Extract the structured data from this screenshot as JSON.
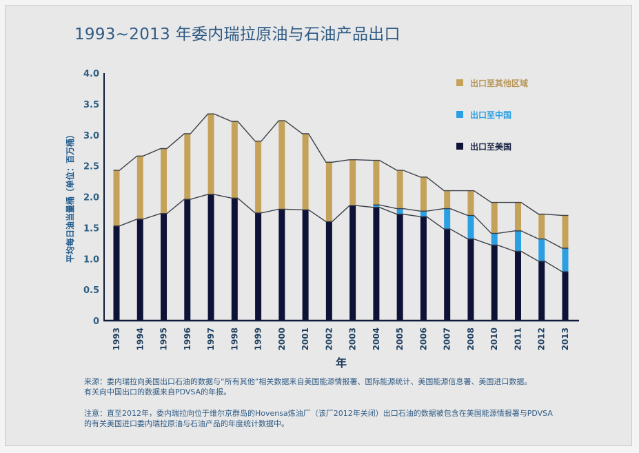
{
  "chart_data": {
    "type": "bar",
    "stacked": true,
    "title": "1993~2013 年委内瑞拉原油与石油产品出口",
    "xlabel": "年",
    "ylabel": "平均每日油当量桶（单位：百万桶）",
    "ylim": [
      0,
      4.0
    ],
    "yticks": [
      "0",
      "0.5",
      "1.0",
      "1.5",
      "2.0",
      "2.5",
      "3.0",
      "3.5",
      "4.0"
    ],
    "ytick_values": [
      0,
      0.5,
      1.0,
      1.5,
      2.0,
      2.5,
      3.0,
      3.5,
      4.0
    ],
    "grid": false,
    "legend_position": "top-right",
    "categories": [
      "1993",
      "1994",
      "1995",
      "1996",
      "1997",
      "1998",
      "1999",
      "2000",
      "2001",
      "2002",
      "2003",
      "2004",
      "2005",
      "2006",
      "2007",
      "2008",
      "2010",
      "2011",
      "2012",
      "2013"
    ],
    "series": [
      {
        "name": "出口至美国",
        "color": "#0d1236",
        "values": [
          1.53,
          1.64,
          1.73,
          1.96,
          2.04,
          1.98,
          1.74,
          1.8,
          1.79,
          1.6,
          1.86,
          1.83,
          1.72,
          1.68,
          1.48,
          1.32,
          1.22,
          1.12,
          0.96,
          0.79
        ]
      },
      {
        "name": "出口至中国",
        "color": "#2a9fe2",
        "values": [
          0,
          0,
          0,
          0,
          0,
          0,
          0,
          0,
          0,
          0,
          0,
          0.04,
          0.09,
          0.09,
          0.33,
          0.38,
          0.19,
          0.33,
          0.36,
          0.38
        ]
      },
      {
        "name": "出口至其他区域",
        "color": "#c4a25a",
        "values": [
          0.9,
          1.02,
          1.05,
          1.06,
          1.3,
          1.24,
          1.16,
          1.43,
          1.23,
          0.96,
          0.74,
          0.72,
          0.62,
          0.55,
          0.29,
          0.4,
          0.5,
          0.46,
          0.4,
          0.53
        ]
      }
    ],
    "totals": [
      2.43,
      2.66,
      2.78,
      3.02,
      3.34,
      3.22,
      2.9,
      3.23,
      3.02,
      2.56,
      2.6,
      2.59,
      2.43,
      2.32,
      2.1,
      2.1,
      1.91,
      1.91,
      1.72,
      1.7
    ],
    "legend": [
      {
        "label": "出口至其他区域",
        "color": "#c4a25a",
        "text_color": "#b8975a"
      },
      {
        "label": "出口至中国",
        "color": "#2a9fe2",
        "text_color": "#2a9fe2"
      },
      {
        "label": "出口至美国",
        "color": "#0d1236",
        "text_color": "#1a2446"
      }
    ]
  },
  "notes": {
    "source_line1": "来源：委内瑞拉向美国出口石油的数据与“所有其他”相关数据来自美国能源情报署、国际能源统计、美国能源信息署、美国进口数据。",
    "source_line2": "有关向中国出口的数据来自PDVSA的年报。",
    "note_line1": "注意：直至2012年，委内瑞拉向位于维尔京群岛的Hovensa炼油厂（该厂2012年关闭）出口石油的数据被包含在美国能源情报署与PDVSA",
    "note_line2": "的有关美国进口委内瑞拉原油与石油产品的年度统计数据中。"
  }
}
